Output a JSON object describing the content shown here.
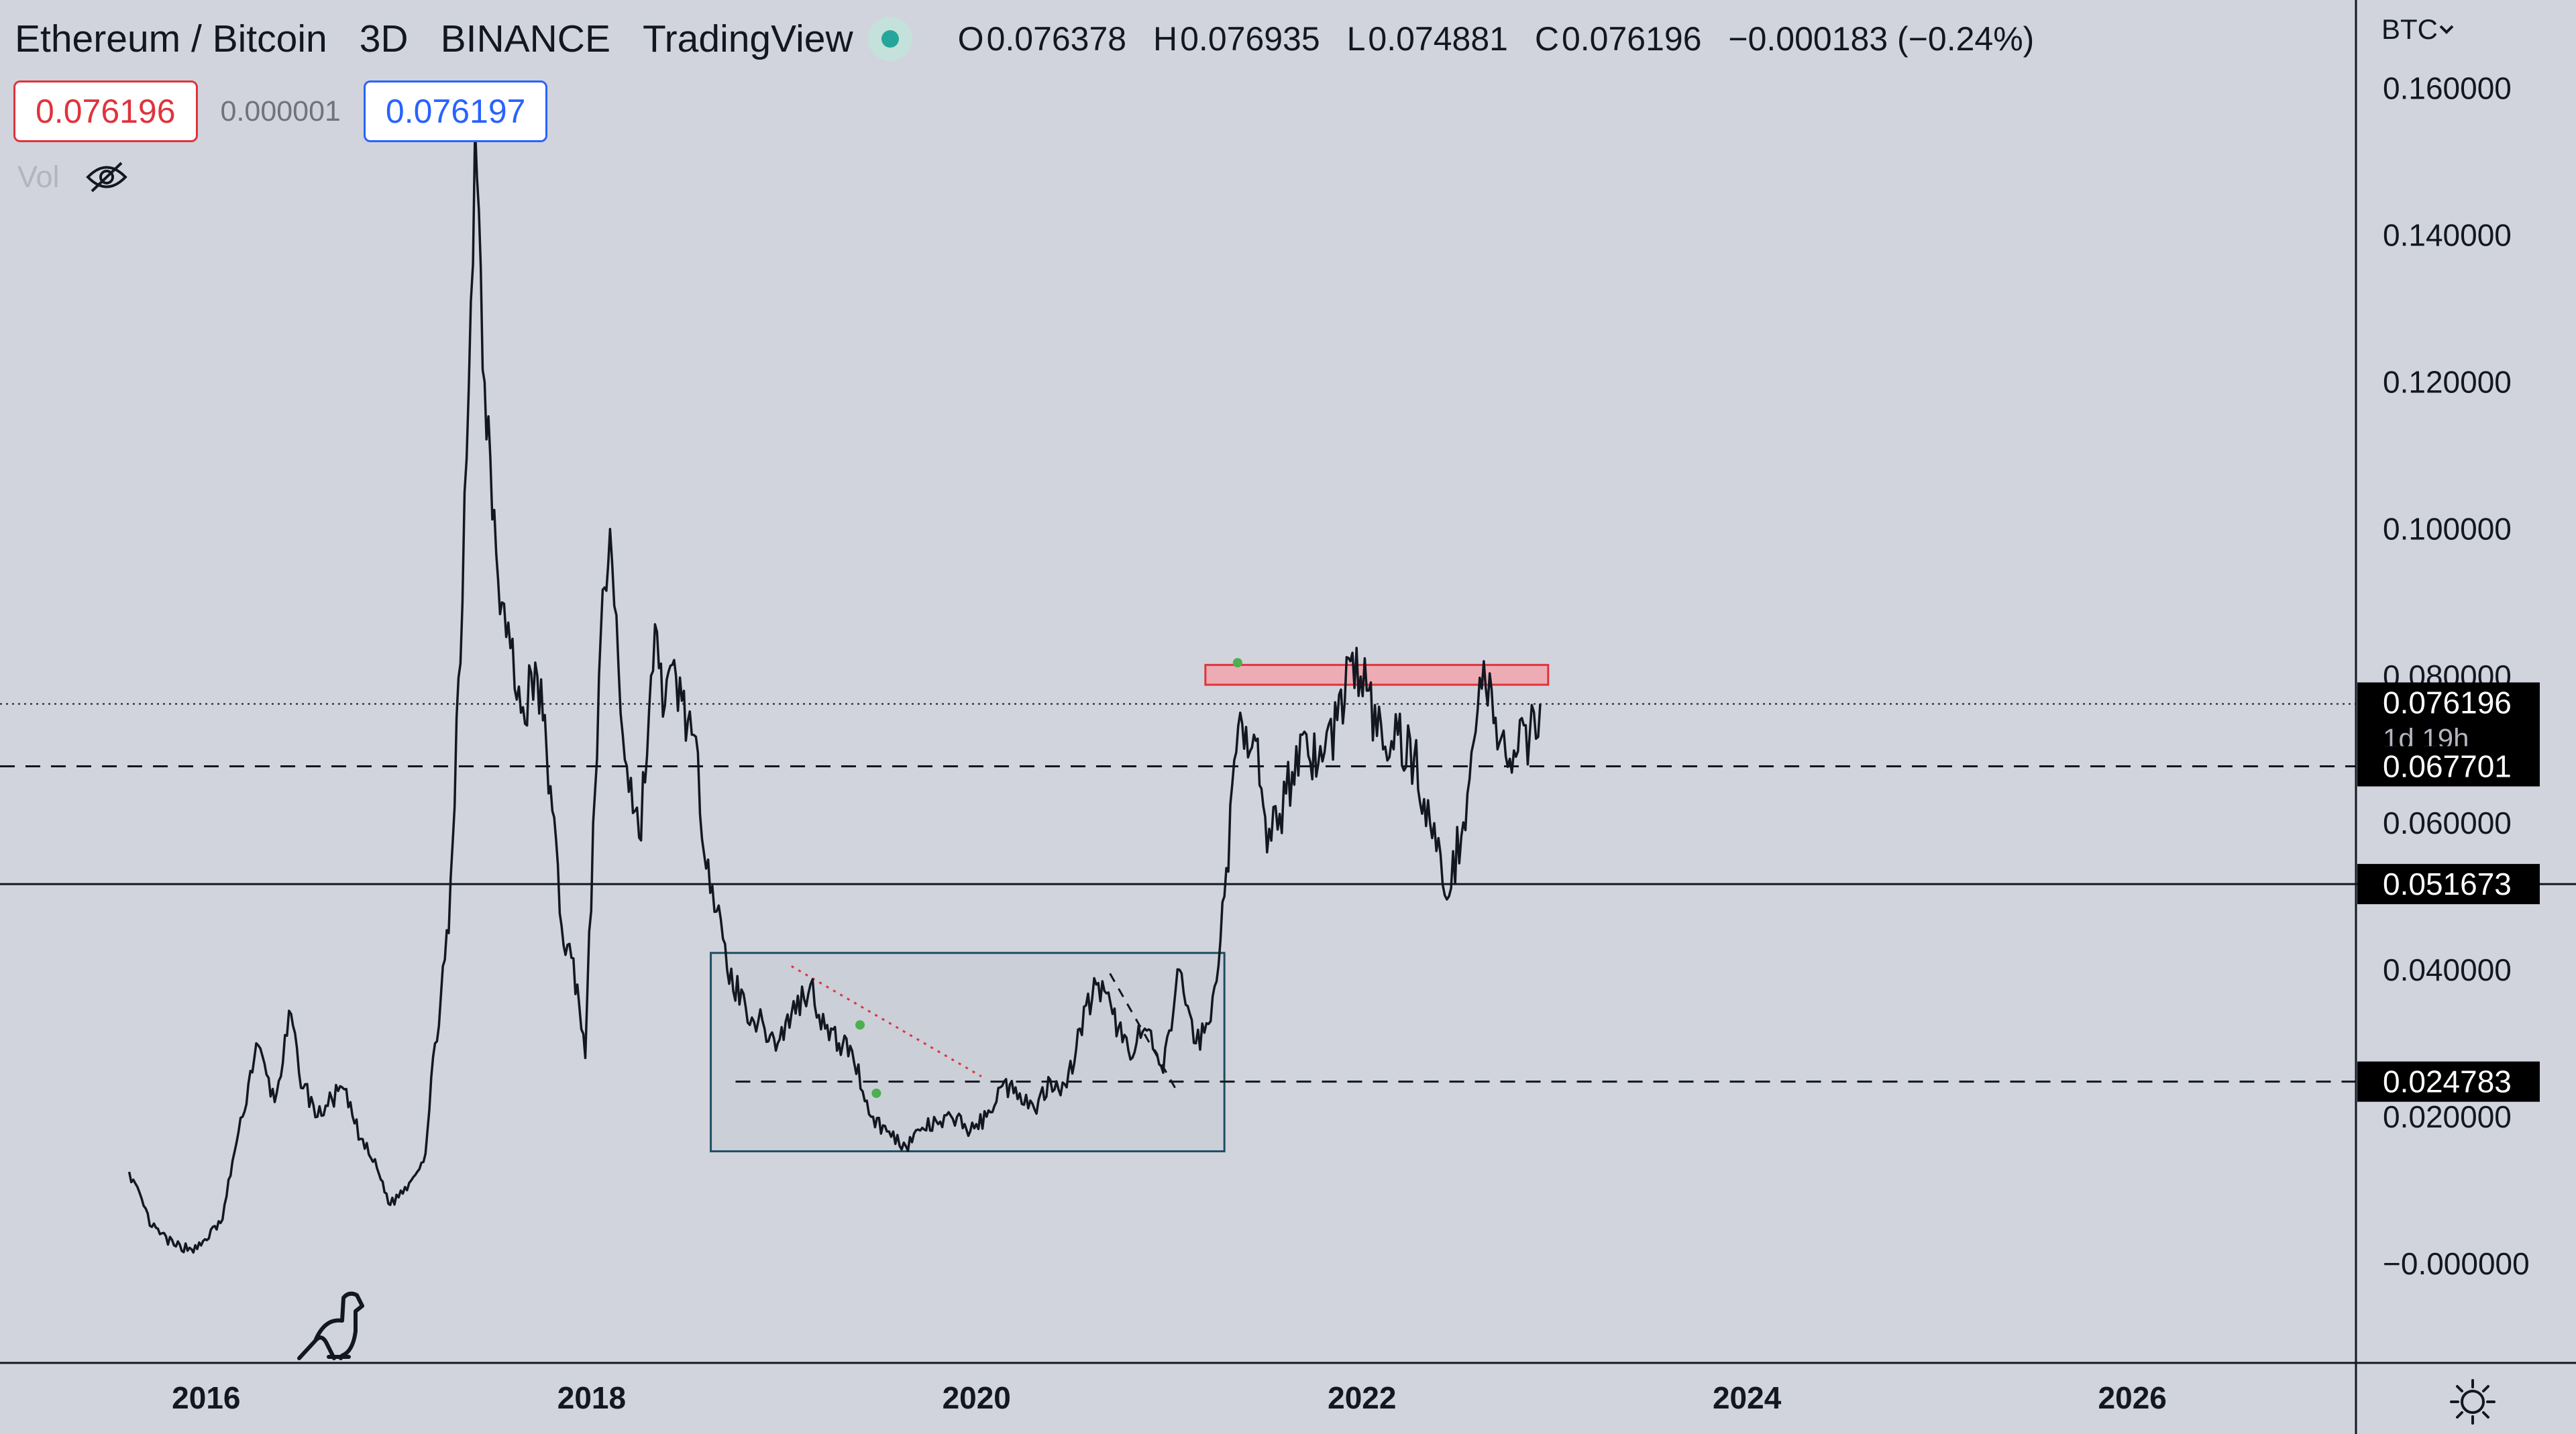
{
  "header": {
    "symbol": "Ethereum / Bitcoin",
    "interval": "3D",
    "exchange": "BINANCE",
    "source": "TradingView",
    "ohlc": {
      "open_key": "O",
      "open": "0.076378",
      "high_key": "H",
      "high": "0.076935",
      "low_key": "L",
      "low": "0.074881",
      "close_key": "C",
      "close": "0.076196",
      "change": "−0.000183 (−0.24%)"
    },
    "sell_price": "0.076196",
    "spread": "0.000001",
    "buy_price": "0.076197",
    "volume_label": "Vol",
    "status_icon": "market-open-dot-icon",
    "volume_hidden_icon": "eye-off-icon"
  },
  "price_axis": {
    "currency": "BTC",
    "labels": [
      "0.160000",
      "0.140000",
      "0.120000",
      "0.100000",
      "0.080000",
      "0.060000",
      "0.040000",
      "0.020000",
      "−0.000000"
    ]
  },
  "time_axis": {
    "labels": [
      "2016",
      "2018",
      "2020",
      "2022",
      "2024",
      "2026"
    ]
  },
  "price_tags": {
    "current": "0.076196",
    "countdown": "1d 19h",
    "level_high": "0.067701",
    "level_mid": "0.051673",
    "level_low": "0.024783"
  },
  "colors": {
    "background": "#d1d4dc",
    "price_line": "#131722",
    "resistance_fill": "#f2a4ab",
    "resistance_border": "#e0333d",
    "range_border": "#1e4f63",
    "tag_bg": "#000000",
    "accent_blue": "#2962ff"
  },
  "chart_data": {
    "type": "line",
    "series": [
      {
        "x": [
          "2015-08-08",
          "2015-09-20",
          "2015-11-01",
          "2015-12-15",
          "2016-02-01",
          "2016-02-20",
          "2016-03-10",
          "2016-04-05",
          "2016-05-10",
          "2016-06-10",
          "2016-06-25",
          "2016-07-30",
          "2016-09-15",
          "2016-10-20",
          "2016-11-20",
          "2016-12-15",
          "2017-01-20",
          "2017-02-20",
          "2017-03-10",
          "2017-04-05",
          "2017-05-01",
          "2017-05-25",
          "2017-06-12",
          "2017-07-15",
          "2017-08-20",
          "2017-09-20",
          "2017-10-15",
          "2017-11-05",
          "2017-12-05",
          "2017-12-20",
          "2018-01-15",
          "2018-02-05",
          "2018-03-01",
          "2018-04-01",
          "2018-05-05",
          "2018-05-20",
          "2018-06-10",
          "2018-07-10",
          "2018-08-10",
          "2018-09-15",
          "2018-10-20",
          "2018-11-25",
          "2018-12-20",
          "2019-01-15",
          "2019-02-20",
          "2019-03-20",
          "2019-04-15",
          "2019-05-10",
          "2019-06-15",
          "2019-07-15",
          "2019-08-20",
          "2019-09-20",
          "2019-10-20",
          "2019-11-25",
          "2019-12-20",
          "2020-01-20",
          "2020-02-15",
          "2020-03-15",
          "2020-04-20",
          "2020-05-20",
          "2020-06-20",
          "2020-07-15",
          "2020-08-15",
          "2020-09-15",
          "2020-10-15",
          "2020-11-15",
          "2020-12-20",
          "2021-01-20",
          "2021-02-20",
          "2021-03-20",
          "2021-04-15",
          "2021-05-15",
          "2021-06-10",
          "2021-07-05",
          "2021-08-10",
          "2021-09-10",
          "2021-10-10",
          "2021-11-15",
          "2021-12-10",
          "2022-01-10",
          "2022-02-10",
          "2022-03-10",
          "2022-04-10",
          "2022-05-10",
          "2022-06-15",
          "2022-07-20",
          "2022-08-20",
          "2022-09-15",
          "2022-10-20",
          "2022-11-15",
          "2022-12-05"
        ],
        "y": [
          0.0125,
          0.005,
          0.0025,
          0.002,
          0.006,
          0.014,
          0.02,
          0.03,
          0.022,
          0.034,
          0.026,
          0.02,
          0.024,
          0.017,
          0.013,
          0.008,
          0.011,
          0.015,
          0.03,
          0.045,
          0.09,
          0.155,
          0.12,
          0.09,
          0.075,
          0.08,
          0.065,
          0.046,
          0.038,
          0.028,
          0.08,
          0.1,
          0.072,
          0.058,
          0.086,
          0.076,
          0.08,
          0.072,
          0.055,
          0.04,
          0.035,
          0.032,
          0.03,
          0.034,
          0.038,
          0.032,
          0.03,
          0.029,
          0.02,
          0.018,
          0.016,
          0.0185,
          0.019,
          0.02,
          0.018,
          0.02,
          0.024,
          0.024,
          0.021,
          0.025,
          0.024,
          0.032,
          0.038,
          0.034,
          0.029,
          0.032,
          0.026,
          0.04,
          0.03,
          0.033,
          0.05,
          0.075,
          0.072,
          0.056,
          0.064,
          0.072,
          0.068,
          0.074,
          0.082,
          0.078,
          0.07,
          0.072,
          0.069,
          0.06,
          0.05,
          0.064,
          0.082,
          0.07,
          0.069,
          0.072,
          0.0762
        ]
      }
    ],
    "levels": [
      0.067701,
      0.051673,
      0.024783,
      0.076196
    ],
    "annotations": [
      {
        "kind": "resistance-zone",
        "from": "2021-03-10",
        "to": "2022-12-20",
        "y_low": 0.0788,
        "y_high": 0.0815
      },
      {
        "kind": "range-box",
        "from": "2018-08-15",
        "to": "2021-04-15",
        "y_low": 0.0153,
        "y_high": 0.0423
      }
    ],
    "ylim": [
      -0.0135,
      0.172
    ],
    "xlim": [
      "2014-12-06",
      "2027-03-01"
    ],
    "grid": false,
    "legend": "top-left"
  }
}
